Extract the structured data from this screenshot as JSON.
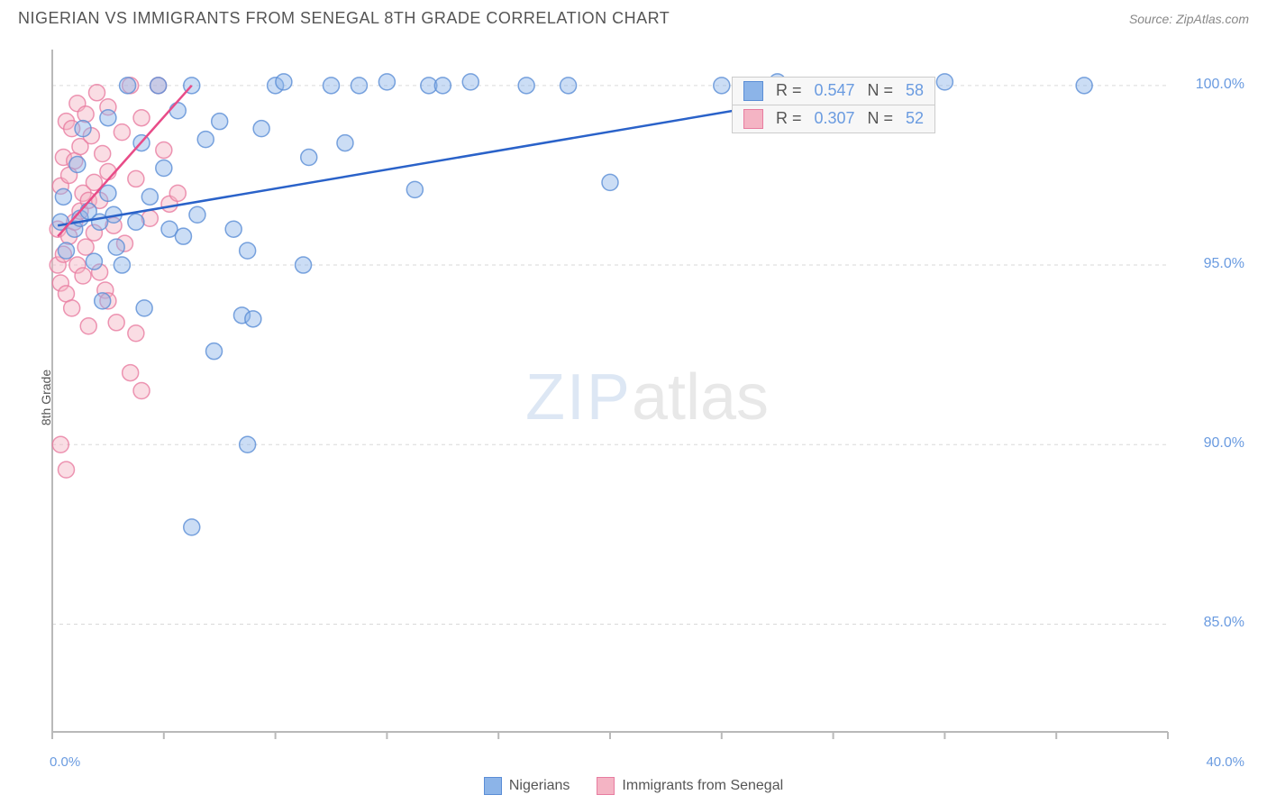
{
  "title": "NIGERIAN VS IMMIGRANTS FROM SENEGAL 8TH GRADE CORRELATION CHART",
  "source": "Source: ZipAtlas.com",
  "ylabel": "8th Grade",
  "watermark_zip": "ZIP",
  "watermark_atlas": "atlas",
  "chart": {
    "type": "scatter",
    "background_color": "#ffffff",
    "grid_color": "#d9d9d9",
    "axis_color": "#b9b9b9",
    "xlim": [
      0,
      40
    ],
    "ylim": [
      82,
      101
    ],
    "yticks": [
      85,
      90,
      95,
      100
    ],
    "ytick_labels": [
      "85.0%",
      "90.0%",
      "95.0%",
      "100.0%"
    ],
    "xtick_positions": [
      0,
      4,
      8,
      12,
      16,
      20,
      24,
      28,
      32,
      36,
      40
    ],
    "x_end_labels": {
      "start": "0.0%",
      "end": "40.0%"
    },
    "marker_radius": 9,
    "marker_opacity": 0.45,
    "line_width": 2.5,
    "label_fontsize": 14,
    "tick_fontsize": 16,
    "tick_color": "#6a9be0"
  },
  "series": {
    "nigerians": {
      "label": "Nigerians",
      "color_fill": "#8cb4e8",
      "color_stroke": "#5a8dd6",
      "line_color": "#2a62c9",
      "R": "0.547",
      "N": "58",
      "trend": {
        "x1": 0.2,
        "y1": 96.1,
        "x2": 30.5,
        "y2": 100.1
      },
      "points": [
        [
          0.3,
          96.2
        ],
        [
          0.4,
          96.9
        ],
        [
          0.5,
          95.4
        ],
        [
          0.8,
          96.0
        ],
        [
          0.9,
          97.8
        ],
        [
          1.0,
          96.3
        ],
        [
          1.1,
          98.8
        ],
        [
          1.3,
          96.5
        ],
        [
          1.5,
          95.1
        ],
        [
          1.7,
          96.2
        ],
        [
          1.8,
          94.0
        ],
        [
          2.0,
          97.0
        ],
        [
          2.0,
          99.1
        ],
        [
          2.2,
          96.4
        ],
        [
          2.3,
          95.5
        ],
        [
          2.5,
          95.0
        ],
        [
          2.7,
          100.0
        ],
        [
          3.0,
          96.2
        ],
        [
          3.2,
          98.4
        ],
        [
          3.3,
          93.8
        ],
        [
          3.5,
          96.9
        ],
        [
          3.8,
          100.0
        ],
        [
          4.0,
          97.7
        ],
        [
          4.2,
          96.0
        ],
        [
          4.5,
          99.3
        ],
        [
          4.7,
          95.8
        ],
        [
          5.0,
          100.0
        ],
        [
          5.2,
          96.4
        ],
        [
          5.5,
          98.5
        ],
        [
          5.8,
          92.6
        ],
        [
          6.0,
          99.0
        ],
        [
          5.0,
          87.7
        ],
        [
          6.5,
          96.0
        ],
        [
          6.8,
          93.6
        ],
        [
          7.0,
          95.4
        ],
        [
          7.2,
          93.5
        ],
        [
          7.5,
          98.8
        ],
        [
          8.0,
          100.0
        ],
        [
          8.3,
          100.1
        ],
        [
          7.0,
          90.0
        ],
        [
          9.0,
          95.0
        ],
        [
          9.2,
          98.0
        ],
        [
          10.0,
          100.0
        ],
        [
          10.5,
          98.4
        ],
        [
          11.0,
          100.0
        ],
        [
          12.0,
          100.1
        ],
        [
          13.0,
          97.1
        ],
        [
          13.5,
          100.0
        ],
        [
          14.0,
          100.0
        ],
        [
          15.0,
          100.1
        ],
        [
          17.0,
          100.0
        ],
        [
          18.5,
          100.0
        ],
        [
          20.0,
          97.3
        ],
        [
          24.0,
          100.0
        ],
        [
          26.0,
          100.1
        ],
        [
          30.0,
          100.0
        ],
        [
          32.0,
          100.1
        ],
        [
          37.0,
          100.0
        ]
      ]
    },
    "senegal": {
      "label": "Immigrants from Senegal",
      "color_fill": "#f4b4c4",
      "color_stroke": "#e87ca0",
      "line_color": "#e84c88",
      "R": "0.307",
      "N": "52",
      "trend": {
        "x1": 0.2,
        "y1": 95.8,
        "x2": 5.0,
        "y2": 100.0
      },
      "points": [
        [
          0.2,
          95.0
        ],
        [
          0.2,
          96.0
        ],
        [
          0.3,
          97.2
        ],
        [
          0.3,
          94.5
        ],
        [
          0.4,
          98.0
        ],
        [
          0.4,
          95.3
        ],
        [
          0.5,
          99.0
        ],
        [
          0.5,
          94.2
        ],
        [
          0.6,
          97.5
        ],
        [
          0.6,
          95.8
        ],
        [
          0.7,
          98.8
        ],
        [
          0.7,
          93.8
        ],
        [
          0.8,
          96.2
        ],
        [
          0.8,
          97.9
        ],
        [
          0.9,
          99.5
        ],
        [
          0.9,
          95.0
        ],
        [
          1.0,
          98.3
        ],
        [
          1.0,
          96.5
        ],
        [
          1.1,
          94.7
        ],
        [
          1.1,
          97.0
        ],
        [
          1.2,
          99.2
        ],
        [
          1.2,
          95.5
        ],
        [
          1.3,
          96.8
        ],
        [
          1.3,
          93.3
        ],
        [
          1.4,
          98.6
        ],
        [
          1.5,
          97.3
        ],
        [
          1.5,
          95.9
        ],
        [
          1.6,
          99.8
        ],
        [
          1.7,
          96.8
        ],
        [
          1.8,
          98.1
        ],
        [
          1.9,
          94.3
        ],
        [
          2.0,
          97.6
        ],
        [
          2.0,
          99.4
        ],
        [
          2.2,
          96.1
        ],
        [
          2.3,
          93.4
        ],
        [
          2.5,
          98.7
        ],
        [
          2.6,
          95.6
        ],
        [
          2.8,
          100.0
        ],
        [
          3.0,
          97.4
        ],
        [
          3.0,
          93.1
        ],
        [
          3.2,
          99.1
        ],
        [
          3.5,
          96.3
        ],
        [
          3.8,
          100.0
        ],
        [
          4.0,
          98.2
        ],
        [
          4.2,
          96.7
        ],
        [
          2.8,
          92.0
        ],
        [
          0.3,
          90.0
        ],
        [
          0.5,
          89.3
        ],
        [
          3.2,
          91.5
        ],
        [
          2.0,
          94.0
        ],
        [
          1.7,
          94.8
        ],
        [
          4.5,
          97.0
        ]
      ]
    }
  },
  "stat_labels": {
    "R": "R =",
    "N": "N ="
  }
}
